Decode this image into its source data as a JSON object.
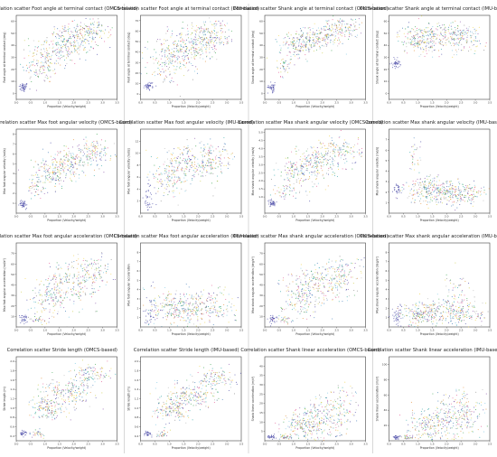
{
  "figure": {
    "xlabel": "Proportion (Velocity/weight)",
    "series_colors": [
      "#3b3ba0",
      "#2a9b3e",
      "#c9c93a",
      "#e08a2c",
      "#7a3ea0",
      "#e04b8a",
      "#7f7f7f",
      "#1f9e9e",
      "#6cc0e0",
      "#b0b0b0",
      "#f0d03a",
      "#2f6fb0"
    ]
  },
  "chart_data": [
    {
      "type": "scatter",
      "title": "Correlation scatter Foot angle at terminal contact (OMCS-based)",
      "xlabel": "Proportion (Velocity/weight)",
      "ylabel": "Foot angle at terminal contact (deg)",
      "xlim": [
        0,
        3.5
      ],
      "ylim": [
        -5,
        65
      ],
      "xticks": [
        "0.0",
        "0.5",
        "1.0",
        "1.5",
        "2.0",
        "2.5",
        "3.0",
        "3.5"
      ],
      "yticks": [
        "0",
        "10",
        "20",
        "30",
        "40",
        "50",
        "60"
      ],
      "grid": false,
      "clusters": [
        {
          "x": 0.25,
          "y": 5,
          "sx": 0.08,
          "sy": 2,
          "n": 45
        },
        {
          "x": 0.9,
          "y": 22,
          "sx": 0.35,
          "sy": 7,
          "n": 110
        },
        {
          "x": 1.4,
          "y": 36,
          "sx": 0.45,
          "sy": 8,
          "n": 150
        },
        {
          "x": 2.0,
          "y": 45,
          "sx": 0.45,
          "sy": 6,
          "n": 170
        },
        {
          "x": 2.6,
          "y": 52,
          "sx": 0.35,
          "sy": 5,
          "n": 110
        }
      ]
    },
    {
      "type": "scatter",
      "title": "Correlation scatter Foot angle at terminal contact (IMU-based)",
      "xlabel": "Proportion (Velocity/weight)",
      "ylabel": "Foot angle at terminal contact (deg)",
      "xlim": [
        0,
        3.5
      ],
      "ylim": [
        -5,
        75
      ],
      "xticks": [
        "0.0",
        "0.5",
        "1.0",
        "1.5",
        "2.0",
        "2.5",
        "3.0",
        "3.5"
      ],
      "yticks": [
        "0",
        "10",
        "20",
        "30",
        "40",
        "50",
        "60",
        "70"
      ],
      "grid": false,
      "clusters": [
        {
          "x": 0.3,
          "y": 8,
          "sx": 0.08,
          "sy": 2,
          "n": 40
        },
        {
          "x": 0.9,
          "y": 28,
          "sx": 0.35,
          "sy": 10,
          "n": 110
        },
        {
          "x": 1.4,
          "y": 40,
          "sx": 0.45,
          "sy": 10,
          "n": 150
        },
        {
          "x": 2.0,
          "y": 50,
          "sx": 0.45,
          "sy": 9,
          "n": 170
        },
        {
          "x": 2.6,
          "y": 58,
          "sx": 0.35,
          "sy": 7,
          "n": 110
        }
      ]
    },
    {
      "type": "scatter",
      "title": "Correlation scatter Shank angle at terminal contact (OMCS-based)",
      "xlabel": "Proportion (Velocity/weight)",
      "ylabel": "Shank angle at terminal contact (deg)",
      "xlim": [
        0,
        3.5
      ],
      "ylim": [
        -5,
        65
      ],
      "xticks": [
        "0.0",
        "0.5",
        "1.0",
        "1.5",
        "2.0",
        "2.5",
        "3.0",
        "3.5"
      ],
      "yticks": [
        "0",
        "10",
        "20",
        "30",
        "40",
        "50",
        "60"
      ],
      "grid": false,
      "clusters": [
        {
          "x": 0.25,
          "y": 5,
          "sx": 0.07,
          "sy": 2,
          "n": 40
        },
        {
          "x": 0.65,
          "y": 22,
          "sx": 0.12,
          "sy": 4,
          "n": 40
        },
        {
          "x": 1.2,
          "y": 40,
          "sx": 0.35,
          "sy": 5,
          "n": 150
        },
        {
          "x": 1.9,
          "y": 47,
          "sx": 0.45,
          "sy": 5,
          "n": 180
        },
        {
          "x": 2.7,
          "y": 55,
          "sx": 0.35,
          "sy": 4,
          "n": 110
        }
      ]
    },
    {
      "type": "scatter",
      "title": "Correlation scatter Shank angle at terminal contact (IMU-based)",
      "xlabel": "Proportion (Velocity/weight)",
      "ylabel": "Shank angle at terminal contact (deg)",
      "xlim": [
        0,
        3.5
      ],
      "ylim": [
        -5,
        65
      ],
      "xticks": [
        "0.0",
        "0.5",
        "1.0",
        "1.5",
        "2.0",
        "2.5",
        "3.0",
        "3.5"
      ],
      "yticks": [
        "0",
        "10",
        "20",
        "30",
        "40",
        "50",
        "60"
      ],
      "grid": false,
      "clusters": [
        {
          "x": 0.25,
          "y": 25,
          "sx": 0.07,
          "sy": 2,
          "n": 40
        },
        {
          "x": 1.0,
          "y": 45,
          "sx": 0.35,
          "sy": 6,
          "n": 130
        },
        {
          "x": 1.7,
          "y": 48,
          "sx": 0.5,
          "sy": 6,
          "n": 180
        },
        {
          "x": 2.5,
          "y": 46,
          "sx": 0.45,
          "sy": 6,
          "n": 130
        }
      ]
    },
    {
      "type": "scatter",
      "title": "Correlation scatter Max foot angular velocity (OMCS-based)",
      "xlabel": "Proportion (Velocity/weight)",
      "ylabel": "Max foot angular velocity (rad/s)",
      "xlim": [
        0,
        3.5
      ],
      "ylim": [
        0,
        8.5
      ],
      "xticks": [
        "0.0",
        "0.5",
        "1.0",
        "1.5",
        "2.0",
        "2.5",
        "3.0",
        "3.5"
      ],
      "yticks": [
        "1",
        "2",
        "3",
        "4",
        "5",
        "6",
        "7",
        "8"
      ],
      "grid": false,
      "clusters": [
        {
          "x": 0.25,
          "y": 0.9,
          "sx": 0.07,
          "sy": 0.2,
          "n": 40
        },
        {
          "x": 0.7,
          "y": 2.5,
          "sx": 0.15,
          "sy": 0.5,
          "n": 40
        },
        {
          "x": 1.2,
          "y": 4.0,
          "sx": 0.35,
          "sy": 0.8,
          "n": 150
        },
        {
          "x": 1.9,
          "y": 5.2,
          "sx": 0.45,
          "sy": 0.8,
          "n": 180
        },
        {
          "x": 2.7,
          "y": 6.2,
          "sx": 0.35,
          "sy": 0.7,
          "n": 110
        }
      ]
    },
    {
      "type": "scatter",
      "title": "Correlation scatter Max foot angular velocity (IMU-based)",
      "xlabel": "Proportion (Velocity/weight)",
      "ylabel": "Max foot angular velocity (rad/s)",
      "xlim": [
        0,
        3.5
      ],
      "ylim": [
        0,
        14
      ],
      "xticks": [
        "0.0",
        "0.5",
        "1.0",
        "1.5",
        "2.0",
        "2.5",
        "3.0",
        "3.5"
      ],
      "yticks": [
        "2",
        "4",
        "6",
        "8",
        "10",
        "12"
      ],
      "grid": false,
      "clusters": [
        {
          "x": 0.3,
          "y": 2.5,
          "sx": 0.1,
          "sy": 1.5,
          "n": 40
        },
        {
          "x": 1.0,
          "y": 6.0,
          "sx": 0.35,
          "sy": 1.5,
          "n": 130
        },
        {
          "x": 1.7,
          "y": 8.0,
          "sx": 0.5,
          "sy": 1.5,
          "n": 180
        },
        {
          "x": 2.5,
          "y": 9.0,
          "sx": 0.45,
          "sy": 1.4,
          "n": 130
        }
      ]
    },
    {
      "type": "scatter",
      "title": "Correlation scatter Max shank angular velocity (OMCS-based)",
      "xlabel": "Proportion (Velocity/weight)",
      "ylabel": "Max shank angular velocity (rad/s)",
      "xlim": [
        0,
        3.5
      ],
      "ylim": [
        0,
        5.2
      ],
      "xticks": [
        "0.0",
        "0.5",
        "1.0",
        "1.5",
        "2.0",
        "2.5",
        "3.0",
        "3.5"
      ],
      "yticks": [
        "1.0",
        "1.5",
        "2.0",
        "2.5",
        "3.0",
        "3.5",
        "4.0",
        "4.5",
        "5.0"
      ],
      "grid": false,
      "clusters": [
        {
          "x": 0.25,
          "y": 0.6,
          "sx": 0.07,
          "sy": 0.1,
          "n": 40
        },
        {
          "x": 0.7,
          "y": 1.4,
          "sx": 0.15,
          "sy": 0.3,
          "n": 40
        },
        {
          "x": 1.2,
          "y": 2.5,
          "sx": 0.35,
          "sy": 0.5,
          "n": 150
        },
        {
          "x": 1.9,
          "y": 3.3,
          "sx": 0.45,
          "sy": 0.5,
          "n": 180
        },
        {
          "x": 2.7,
          "y": 3.9,
          "sx": 0.35,
          "sy": 0.45,
          "n": 110
        }
      ]
    },
    {
      "type": "scatter",
      "title": "Correlation scatter Max shank angular velocity (IMU-based)",
      "xlabel": "Proportion (Velocity/weight)",
      "ylabel": "Max shank angular velocity (rad/s)",
      "xlim": [
        0,
        3.5
      ],
      "ylim": [
        0,
        8
      ],
      "xticks": [
        "0.0",
        "0.5",
        "1.0",
        "1.5",
        "2.0",
        "2.5",
        "3.0",
        "3.5"
      ],
      "yticks": [
        "1",
        "2",
        "3",
        "4",
        "5",
        "6",
        "7"
      ],
      "grid": false,
      "clusters": [
        {
          "x": 0.3,
          "y": 2.2,
          "sx": 0.07,
          "sy": 0.3,
          "n": 30
        },
        {
          "x": 0.9,
          "y": 5.5,
          "sx": 0.1,
          "sy": 0.8,
          "n": 30
        },
        {
          "x": 1.3,
          "y": 2.2,
          "sx": 0.4,
          "sy": 0.6,
          "n": 150
        },
        {
          "x": 2.0,
          "y": 2.0,
          "sx": 0.5,
          "sy": 0.6,
          "n": 180
        },
        {
          "x": 2.7,
          "y": 1.8,
          "sx": 0.4,
          "sy": 0.5,
          "n": 110
        }
      ]
    },
    {
      "type": "scatter",
      "title": "Correlation scatter Max foot angular acceleration (OMCS-based)",
      "xlabel": "Proportion (Velocity/weight)",
      "ylabel": "Max foot angular acceleration (rad/s²)",
      "xlim": [
        0,
        3.5
      ],
      "ylim": [
        0,
        80
      ],
      "xticks": [
        "0.0",
        "0.5",
        "1.0",
        "1.5",
        "2.0",
        "2.5",
        "3.0",
        "3.5"
      ],
      "yticks": [
        "10",
        "20",
        "30",
        "40",
        "50",
        "60",
        "70"
      ],
      "grid": false,
      "clusters": [
        {
          "x": 0.25,
          "y": 8,
          "sx": 0.07,
          "sy": 2,
          "n": 30
        },
        {
          "x": 0.7,
          "y": 7,
          "sx": 0.15,
          "sy": 1.5,
          "n": 30
        },
        {
          "x": 1.2,
          "y": 30,
          "sx": 0.35,
          "sy": 10,
          "n": 150
        },
        {
          "x": 1.9,
          "y": 42,
          "sx": 0.45,
          "sy": 10,
          "n": 180
        },
        {
          "x": 2.7,
          "y": 52,
          "sx": 0.35,
          "sy": 9,
          "n": 110
        }
      ]
    },
    {
      "type": "scatter",
      "title": "Correlation scatter Max foot angular acceleration (IMU-based)",
      "xlabel": "Proportion (Velocity/weight)",
      "ylabel": "Max foot angular acceleration",
      "xlim": [
        0,
        3.5
      ],
      "ylim": [
        0,
        9
      ],
      "xticks": [
        "0.0",
        "0.5",
        "1.0",
        "1.5",
        "2.0",
        "2.5",
        "3.0",
        "3.5"
      ],
      "yticks": [
        "1",
        "2",
        "3",
        "4",
        "5",
        "6",
        "7",
        "8"
      ],
      "grid": false,
      "clusters": [
        {
          "x": 0.3,
          "y": 1.5,
          "sx": 0.1,
          "sy": 1.2,
          "n": 40
        },
        {
          "x": 1.0,
          "y": 2.0,
          "sx": 0.35,
          "sy": 1.0,
          "n": 130
        },
        {
          "x": 1.7,
          "y": 2.0,
          "sx": 0.5,
          "sy": 1.0,
          "n": 180
        },
        {
          "x": 2.5,
          "y": 2.2,
          "sx": 0.45,
          "sy": 1.0,
          "n": 130
        }
      ]
    },
    {
      "type": "scatter",
      "title": "Correlation scatter Max shank angular acceleration (OMCS-based)",
      "xlabel": "Proportion (Velocity/weight)",
      "ylabel": "Max shank angular acceleration (deg/s²)",
      "xlim": [
        0,
        3.5
      ],
      "ylim": [
        0,
        80
      ],
      "xticks": [
        "0.0",
        "0.5",
        "1.0",
        "1.5",
        "2.0",
        "2.5",
        "3.0",
        "3.5"
      ],
      "yticks": [
        "10",
        "20",
        "30",
        "40",
        "50",
        "60",
        "70"
      ],
      "grid": false,
      "clusters": [
        {
          "x": 0.25,
          "y": 8,
          "sx": 0.07,
          "sy": 2,
          "n": 30
        },
        {
          "x": 0.7,
          "y": 7,
          "sx": 0.15,
          "sy": 1.5,
          "n": 30
        },
        {
          "x": 1.2,
          "y": 30,
          "sx": 0.35,
          "sy": 10,
          "n": 150
        },
        {
          "x": 1.9,
          "y": 42,
          "sx": 0.45,
          "sy": 10,
          "n": 180
        },
        {
          "x": 2.7,
          "y": 50,
          "sx": 0.35,
          "sy": 9,
          "n": 110
        }
      ]
    },
    {
      "type": "scatter",
      "title": "Correlation scatter Max shank angular acceleration (IMU-based)",
      "xlabel": "Proportion (Velocity/weight)",
      "ylabel": "Max shank angular acceleration (deg/s²)",
      "xlim": [
        0,
        3.5
      ],
      "ylim": [
        0,
        9
      ],
      "xticks": [
        "0.0",
        "0.5",
        "1.0",
        "1.5",
        "2.0",
        "2.5",
        "3.0",
        "3.5"
      ],
      "yticks": [
        "1",
        "2",
        "3",
        "4",
        "5",
        "6",
        "7",
        "8"
      ],
      "grid": false,
      "clusters": [
        {
          "x": 0.3,
          "y": 1.2,
          "sx": 0.1,
          "sy": 0.6,
          "n": 40
        },
        {
          "x": 1.0,
          "y": 1.3,
          "sx": 0.35,
          "sy": 0.6,
          "n": 130
        },
        {
          "x": 1.8,
          "y": 1.5,
          "sx": 0.5,
          "sy": 0.8,
          "n": 180
        },
        {
          "x": 2.3,
          "y": 3.5,
          "sx": 0.3,
          "sy": 1.2,
          "n": 60
        },
        {
          "x": 2.7,
          "y": 1.5,
          "sx": 0.4,
          "sy": 0.6,
          "n": 110
        }
      ]
    },
    {
      "type": "scatter",
      "title": "Correlation scatter Stride length (OMCS-based)",
      "xlabel": "Proportion (Velocity/weight)",
      "ylabel": "Stride length (m)",
      "xlim": [
        0,
        3.5
      ],
      "ylim": [
        0.3,
        2.1
      ],
      "xticks": [
        "0.0",
        "0.5",
        "1.0",
        "1.5",
        "2.0",
        "2.5",
        "3.0",
        "3.5"
      ],
      "yticks": [
        "0.4",
        "0.6",
        "0.8",
        "1.0",
        "1.2",
        "1.4",
        "1.6",
        "1.8",
        "2.0"
      ],
      "grid": false,
      "clusters": [
        {
          "x": 0.25,
          "y": 0.45,
          "sx": 0.07,
          "sy": 0.04,
          "n": 30
        },
        {
          "x": 0.75,
          "y": 0.45,
          "sx": 0.1,
          "sy": 0.04,
          "n": 30
        },
        {
          "x": 1.1,
          "y": 1.0,
          "sx": 0.3,
          "sy": 0.12,
          "n": 150
        },
        {
          "x": 1.8,
          "y": 1.35,
          "sx": 0.45,
          "sy": 0.13,
          "n": 180
        },
        {
          "x": 2.6,
          "y": 1.7,
          "sx": 0.35,
          "sy": 0.11,
          "n": 110
        }
      ]
    },
    {
      "type": "scatter",
      "title": "Correlation scatter Stride length (IMU-based)",
      "xlabel": "Proportion (Velocity/weight)",
      "ylabel": "Stride length (m)",
      "xlim": [
        0,
        3.5
      ],
      "ylim": [
        0.3,
        2.1
      ],
      "xticks": [
        "0.0",
        "0.5",
        "1.0",
        "1.5",
        "2.0",
        "2.5",
        "3.0",
        "3.5"
      ],
      "yticks": [
        "0.4",
        "0.6",
        "0.8",
        "1.0",
        "1.2",
        "1.4",
        "1.6",
        "1.8",
        "2.0"
      ],
      "grid": false,
      "clusters": [
        {
          "x": 0.25,
          "y": 0.45,
          "sx": 0.07,
          "sy": 0.04,
          "n": 30
        },
        {
          "x": 0.75,
          "y": 0.45,
          "sx": 0.1,
          "sy": 0.04,
          "n": 30
        },
        {
          "x": 1.1,
          "y": 0.95,
          "sx": 0.3,
          "sy": 0.12,
          "n": 150
        },
        {
          "x": 1.8,
          "y": 1.3,
          "sx": 0.45,
          "sy": 0.13,
          "n": 180
        },
        {
          "x": 2.6,
          "y": 1.65,
          "sx": 0.35,
          "sy": 0.11,
          "n": 110
        }
      ]
    },
    {
      "type": "scatter",
      "title": "Correlation scatter Shank linear acceleration (OMCS-based)",
      "xlabel": "Proportion (Velocity/weight)",
      "ylabel": "Shank linear acceleration (m/s²)",
      "xlim": [
        0,
        3.5
      ],
      "ylim": [
        0,
        45
      ],
      "xticks": [
        "0.0",
        "0.5",
        "1.0",
        "1.5",
        "2.0",
        "2.5",
        "3.0",
        "3.5"
      ],
      "yticks": [
        "5",
        "10",
        "15",
        "20",
        "25",
        "30",
        "35",
        "40"
      ],
      "grid": false,
      "clusters": [
        {
          "x": 0.25,
          "y": 2,
          "sx": 0.07,
          "sy": 0.6,
          "n": 30
        },
        {
          "x": 0.7,
          "y": 2,
          "sx": 0.12,
          "sy": 0.6,
          "n": 30
        },
        {
          "x": 1.3,
          "y": 8,
          "sx": 0.35,
          "sy": 4,
          "n": 150
        },
        {
          "x": 2.0,
          "y": 12,
          "sx": 0.45,
          "sy": 6,
          "n": 180
        },
        {
          "x": 2.7,
          "y": 16,
          "sx": 0.35,
          "sy": 7,
          "n": 110
        }
      ]
    },
    {
      "type": "scatter",
      "title": "Correlation scatter Shank linear acceleration (IMU-based)",
      "xlabel": "Proportion (Velocity/weight)",
      "ylabel": "Shank linear acceleration (m/s²)",
      "xlim": [
        0,
        3.5
      ],
      "ylim": [
        0,
        110
      ],
      "xticks": [
        "0.0",
        "0.5",
        "1.0",
        "1.5",
        "2.0",
        "2.5",
        "3.0",
        "3.5"
      ],
      "yticks": [
        "20",
        "40",
        "60",
        "80",
        "100"
      ],
      "grid": false,
      "clusters": [
        {
          "x": 0.25,
          "y": 4,
          "sx": 0.07,
          "sy": 1.5,
          "n": 30
        },
        {
          "x": 0.7,
          "y": 4,
          "sx": 0.12,
          "sy": 1.5,
          "n": 30
        },
        {
          "x": 1.3,
          "y": 20,
          "sx": 0.35,
          "sy": 12,
          "n": 150
        },
        {
          "x": 2.0,
          "y": 30,
          "sx": 0.45,
          "sy": 15,
          "n": 180
        },
        {
          "x": 2.7,
          "y": 35,
          "sx": 0.35,
          "sy": 15,
          "n": 110
        }
      ]
    }
  ]
}
